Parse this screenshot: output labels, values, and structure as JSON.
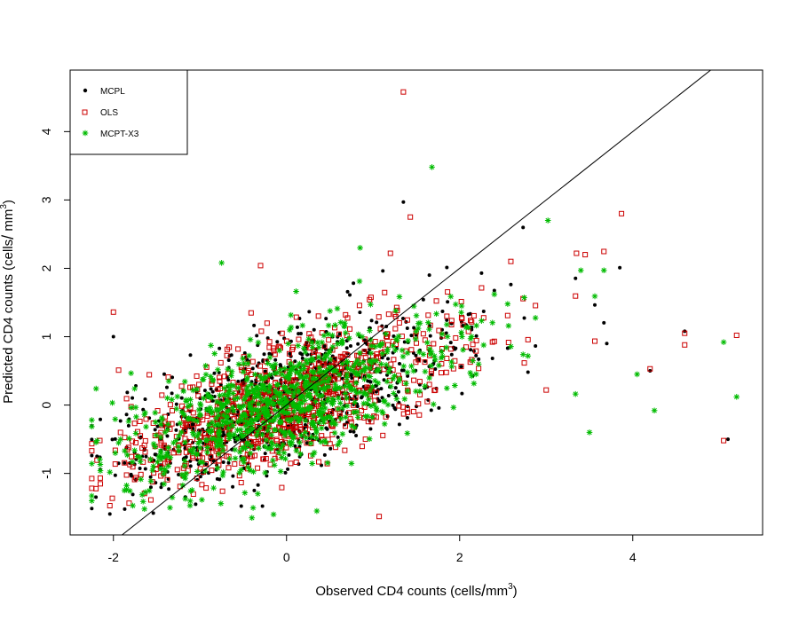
{
  "chart_data": {
    "type": "scatter",
    "title": "",
    "xlabel": "Observed CD4 counts (cells/mm³)",
    "ylabel": "Predicted CD4 counts (cells/mm³)",
    "xlabel_parts": {
      "prefix": "Observed CD4 counts (cells",
      "slash": "/",
      "unit": "mm",
      "sup": "3",
      "suffix": ")"
    },
    "ylabel_parts": {
      "prefix": "Predicted CD4 counts (cells",
      "slash": "/",
      "unit": " mm",
      "sup": "3",
      "suffix": ")"
    },
    "xlim": [
      -2.5,
      5.5
    ],
    "ylim": [
      -1.9,
      4.9
    ],
    "xticks": [
      -2,
      0,
      2,
      4
    ],
    "yticks": [
      -1,
      0,
      1,
      2,
      3,
      4
    ],
    "reference_line": {
      "label": "y = x",
      "slope": 1,
      "intercept": 0,
      "color": "#000000"
    },
    "grid": false,
    "legend_position": "top-left",
    "series": [
      {
        "name": "MCPL",
        "color": "#000000",
        "marker": "dot"
      },
      {
        "name": "OLS",
        "color": "#cc0000",
        "marker": "open-square"
      },
      {
        "name": "MCPT-X3",
        "color": "#00bb00",
        "marker": "asterisk"
      }
    ],
    "generated_cloud": {
      "note_points_per_series": 900,
      "x_center": -0.1,
      "x_spread": 0.85,
      "slope": 0.42,
      "noise": 0.45
    },
    "notable_points": {
      "MCPL": [
        [
          1.35,
          2.97
        ],
        [
          3.85,
          2.01
        ],
        [
          4.6,
          1.08
        ],
        [
          5.1,
          -0.5
        ],
        [
          4.2,
          0.5
        ],
        [
          3.7,
          0.9
        ],
        [
          1.65,
          1.9
        ],
        [
          -1.05,
          -1.45
        ],
        [
          -2.0,
          1.0
        ]
      ],
      "OLS": [
        [
          1.35,
          4.58
        ],
        [
          1.43,
          2.75
        ],
        [
          3.87,
          2.8
        ],
        [
          3.35,
          2.22
        ],
        [
          3.45,
          2.2
        ],
        [
          1.2,
          2.22
        ],
        [
          -0.3,
          2.04
        ],
        [
          -2.0,
          1.36
        ],
        [
          5.2,
          1.02
        ],
        [
          4.6,
          1.05
        ],
        [
          4.6,
          0.88
        ],
        [
          5.05,
          -0.52
        ],
        [
          1.07,
          -1.63
        ],
        [
          4.2,
          0.53
        ],
        [
          3.0,
          0.22
        ]
      ],
      "MCPT-X3": [
        [
          1.68,
          3.48
        ],
        [
          3.02,
          2.7
        ],
        [
          -0.75,
          2.08
        ],
        [
          0.85,
          2.3
        ],
        [
          5.2,
          0.12
        ],
        [
          5.05,
          0.92
        ],
        [
          4.25,
          -0.08
        ],
        [
          3.5,
          -0.4
        ],
        [
          -0.4,
          -1.65
        ],
        [
          -0.15,
          -1.6
        ],
        [
          0.35,
          -1.55
        ],
        [
          -2.2,
          0.24
        ],
        [
          -2.25,
          -0.22
        ],
        [
          3.4,
          1.97
        ],
        [
          4.05,
          0.45
        ]
      ]
    }
  }
}
